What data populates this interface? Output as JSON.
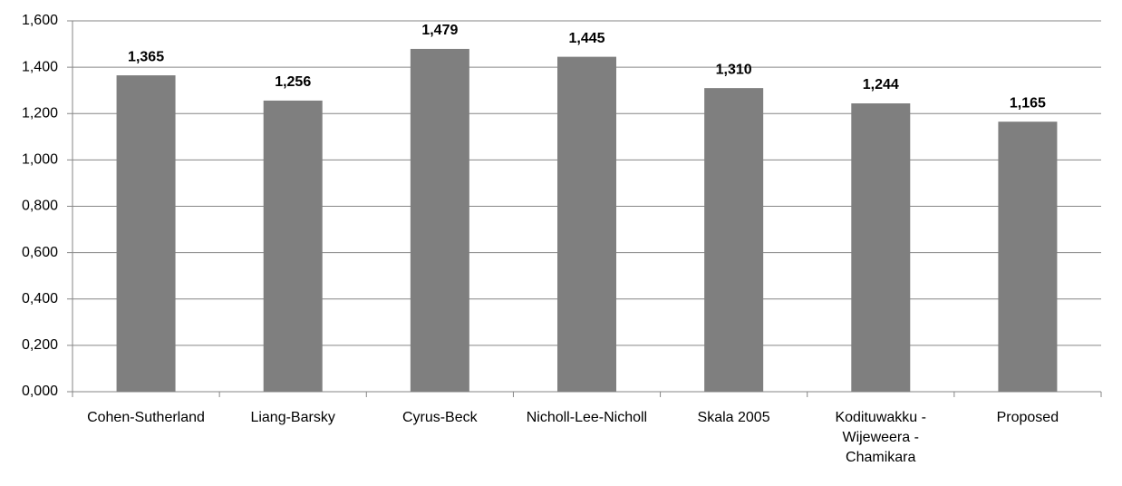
{
  "chart_data": {
    "type": "bar",
    "categories": [
      "Cohen-Sutherland",
      "Liang-Barsky",
      "Cyrus-Beck",
      "Nicholl-Lee-Nicholl",
      "Skala 2005",
      "Kodituwakku - Wijeweera - Chamikara",
      "Proposed"
    ],
    "values": [
      1.365,
      1.256,
      1.479,
      1.445,
      1.31,
      1.244,
      1.165
    ],
    "value_labels": [
      "1,365",
      "1,256",
      "1,479",
      "1,445",
      "1,310",
      "1,244",
      "1,165"
    ],
    "color": "#7f7f7f",
    "ylim": [
      0,
      1.6
    ],
    "yticks": [
      {
        "value": 0,
        "label": "0,000"
      },
      {
        "value": 0.2,
        "label": "0,200"
      },
      {
        "value": 0.4,
        "label": "0,400"
      },
      {
        "value": 0.6,
        "label": "0,600"
      },
      {
        "value": 0.8,
        "label": "0,800"
      },
      {
        "value": 1.0,
        "label": "1,000"
      },
      {
        "value": 1.2,
        "label": "1,200"
      },
      {
        "value": 1.4,
        "label": "1,400"
      },
      {
        "value": 1.6,
        "label": "1,600"
      }
    ],
    "grid": true
  }
}
